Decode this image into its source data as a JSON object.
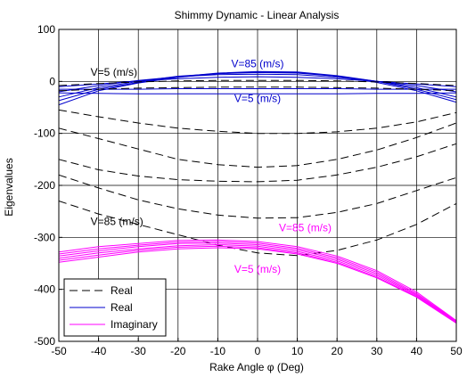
{
  "chart_data": {
    "type": "line",
    "title": "Shimmy Dynamic - Linear Analysis",
    "xlabel": "Rake Angle φ (Deg)",
    "ylabel": "Eigenvalues",
    "xlim": [
      -50,
      50
    ],
    "ylim": [
      -500,
      100
    ],
    "xticks": [
      -50,
      -40,
      -30,
      -20,
      -10,
      0,
      10,
      20,
      30,
      40,
      50
    ],
    "yticks": [
      -500,
      -400,
      -300,
      -200,
      -100,
      0,
      100
    ],
    "grid": true,
    "legend_position": "bottom-left",
    "legend": [
      {
        "label": "Real",
        "color": "#000000",
        "style": "dashed"
      },
      {
        "label": "Real",
        "color": "#0000cc",
        "style": "solid"
      },
      {
        "label": "Imaginary",
        "color": "#ff00ff",
        "style": "solid"
      }
    ],
    "annotations": [
      {
        "text": "V=85 (m/s)",
        "color": "#0000cc",
        "x": 0,
        "y": 27
      },
      {
        "text": "V=5 (m/s)",
        "color": "#000000",
        "x": -42,
        "y": 11
      },
      {
        "text": "V=5 (m/s)",
        "color": "#0000cc",
        "x": 0,
        "y": -40
      },
      {
        "text": "V=85 (m/s)",
        "color": "#000000",
        "x": -42,
        "y": -276
      },
      {
        "text": "V=85 (m/s)",
        "color": "#ff00ff",
        "x": 12,
        "y": -288
      },
      {
        "text": "V=5 (m/s)",
        "color": "#ff00ff",
        "x": 0,
        "y": -368
      }
    ],
    "series_groups": [
      {
        "kind": "Real",
        "color": "#0000cc",
        "style": "solid",
        "curves": [
          {
            "x": [
              -50,
              -40,
              -30,
              -20,
              -10,
              0,
              10,
              20,
              30,
              40,
              50
            ],
            "y": [
              -45,
              -18,
              -3,
              8,
              15,
              18,
              17,
              10,
              -2,
              -18,
              -40
            ]
          },
          {
            "x": [
              -50,
              -40,
              -30,
              -20,
              -10,
              0,
              10,
              20,
              30,
              40,
              50
            ],
            "y": [
              -37,
              -15,
              -2,
              9,
              16,
              19,
              18,
              11,
              0,
              -15,
              -35
            ]
          },
          {
            "x": [
              -50,
              -40,
              -30,
              -20,
              -10,
              0,
              10,
              20,
              30,
              40,
              50
            ],
            "y": [
              -30,
              -12,
              0,
              10,
              15,
              17,
              16,
              10,
              0,
              -12,
              -30
            ]
          },
          {
            "x": [
              -50,
              -40,
              -30,
              -20,
              -10,
              0,
              10,
              20,
              30,
              40,
              50
            ],
            "y": [
              -20,
              -8,
              2,
              9,
              13,
              14,
              13,
              8,
              0,
              -8,
              -20
            ]
          },
          {
            "x": [
              -50,
              -40,
              -30,
              -20,
              -10,
              0,
              10,
              20,
              30,
              40,
              50
            ],
            "y": [
              -10,
              -5,
              1,
              5,
              8,
              9,
              8,
              5,
              0,
              -5,
              -10
            ]
          },
          {
            "x": [
              -50,
              -40,
              -30,
              -20,
              -10,
              0,
              10,
              20,
              30,
              40,
              50
            ],
            "y": [
              -22,
              -23,
              -24,
              -24,
              -24,
              -24,
              -24,
              -24,
              -23,
              -23,
              -22
            ]
          },
          {
            "x": [
              -50,
              -40,
              -30,
              -20,
              -10,
              0,
              10,
              20,
              30,
              40,
              50
            ],
            "y": [
              -15,
              -15,
              -15,
              -14,
              -14,
              -14,
              -14,
              -14,
              -15,
              -15,
              -15
            ]
          }
        ]
      },
      {
        "kind": "Real",
        "color": "#000000",
        "style": "dashed",
        "curves": [
          {
            "x": [
              -50,
              -40,
              -30,
              -20,
              -10,
              0,
              10,
              20,
              30,
              40,
              50
            ],
            "y": [
              -8,
              -4,
              -1,
              1,
              2,
              2,
              2,
              1,
              -1,
              -4,
              -8
            ]
          },
          {
            "x": [
              -50,
              -40,
              -30,
              -20,
              -10,
              0,
              10,
              20,
              30,
              40,
              50
            ],
            "y": [
              -18,
              -15,
              -13,
              -12,
              -11,
              -11,
              -11,
              -12,
              -13,
              -15,
              -18
            ]
          },
          {
            "x": [
              -50,
              -40,
              -30,
              -20,
              -10,
              0,
              10,
              20,
              30,
              40,
              50
            ],
            "y": [
              -55,
              -68,
              -80,
              -90,
              -96,
              -100,
              -100,
              -97,
              -90,
              -78,
              -60
            ]
          },
          {
            "x": [
              -50,
              -40,
              -30,
              -20,
              -10,
              0,
              10,
              20,
              30,
              40,
              50
            ],
            "y": [
              -90,
              -110,
              -130,
              -150,
              -160,
              -165,
              -162,
              -150,
              -132,
              -108,
              -80
            ]
          },
          {
            "x": [
              -50,
              -40,
              -30,
              -20,
              -10,
              0,
              10,
              20,
              30,
              40,
              50
            ],
            "y": [
              -150,
              -170,
              -182,
              -189,
              -192,
              -193,
              -190,
              -180,
              -165,
              -145,
              -120
            ]
          },
          {
            "x": [
              -50,
              -40,
              -30,
              -20,
              -10,
              0,
              10,
              20,
              30,
              40,
              50
            ],
            "y": [
              -180,
              -205,
              -228,
              -245,
              -257,
              -263,
              -262,
              -252,
              -235,
              -210,
              -185
            ]
          },
          {
            "x": [
              -50,
              -40,
              -30,
              -20,
              -10,
              0,
              10,
              20,
              30,
              40,
              50
            ],
            "y": [
              -230,
              -255,
              -275,
              -295,
              -315,
              -330,
              -335,
              -325,
              -305,
              -275,
              -235
            ]
          }
        ]
      },
      {
        "kind": "Imaginary",
        "color": "#ff00ff",
        "style": "solid",
        "curves": [
          {
            "x": [
              -50,
              -40,
              -30,
              -20,
              -10,
              0,
              10,
              20,
              30,
              40,
              50
            ],
            "y": [
              -348,
              -338,
              -328,
              -322,
              -320,
              -322,
              -332,
              -350,
              -378,
              -415,
              -465
            ]
          },
          {
            "x": [
              -50,
              -40,
              -30,
              -20,
              -10,
              0,
              10,
              20,
              30,
              40,
              50
            ],
            "y": [
              -344,
              -334,
              -325,
              -319,
              -317,
              -320,
              -330,
              -348,
              -376,
              -414,
              -464
            ]
          },
          {
            "x": [
              -50,
              -40,
              -30,
              -20,
              -10,
              0,
              10,
              20,
              30,
              40,
              50
            ],
            "y": [
              -340,
              -330,
              -322,
              -316,
              -314,
              -317,
              -327,
              -345,
              -373,
              -412,
              -463
            ]
          },
          {
            "x": [
              -50,
              -40,
              -30,
              -20,
              -10,
              0,
              10,
              20,
              30,
              40,
              50
            ],
            "y": [
              -336,
              -326,
              -318,
              -312,
              -311,
              -314,
              -324,
              -342,
              -370,
              -410,
              -462
            ]
          },
          {
            "x": [
              -50,
              -40,
              -30,
              -20,
              -10,
              0,
              10,
              20,
              30,
              40,
              50
            ],
            "y": [
              -332,
              -322,
              -315,
              -309,
              -308,
              -311,
              -321,
              -339,
              -367,
              -408,
              -461
            ]
          },
          {
            "x": [
              -50,
              -40,
              -30,
              -20,
              -10,
              0,
              10,
              20,
              30,
              40,
              50
            ],
            "y": [
              -328,
              -318,
              -312,
              -306,
              -305,
              -308,
              -318,
              -336,
              -364,
              -405,
              -460
            ]
          }
        ]
      }
    ]
  }
}
